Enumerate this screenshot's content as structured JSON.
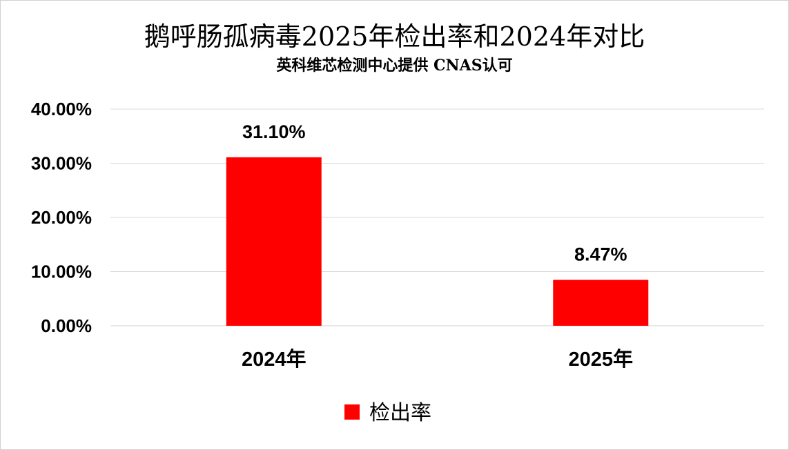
{
  "chart_data": {
    "type": "bar",
    "title": "鹅呼肠孤病毒2025年检出率和2024年对比",
    "subtitle": "英科维芯检测中心提供   CNAS认可",
    "categories": [
      "2024年",
      "2025年"
    ],
    "series": [
      {
        "name": "检出率",
        "values": [
          31.1,
          8.47
        ],
        "color": "#ff0000"
      }
    ],
    "data_labels": [
      "31.10%",
      "8.47%"
    ],
    "ylim": [
      0,
      40
    ],
    "yticks": [
      0,
      10,
      20,
      30,
      40
    ],
    "ytick_labels": [
      "0.00%",
      "10.00%",
      "20.00%",
      "30.00%",
      "40.00%"
    ],
    "grid": true,
    "legend": "bottom",
    "xlabel": "",
    "ylabel": ""
  }
}
